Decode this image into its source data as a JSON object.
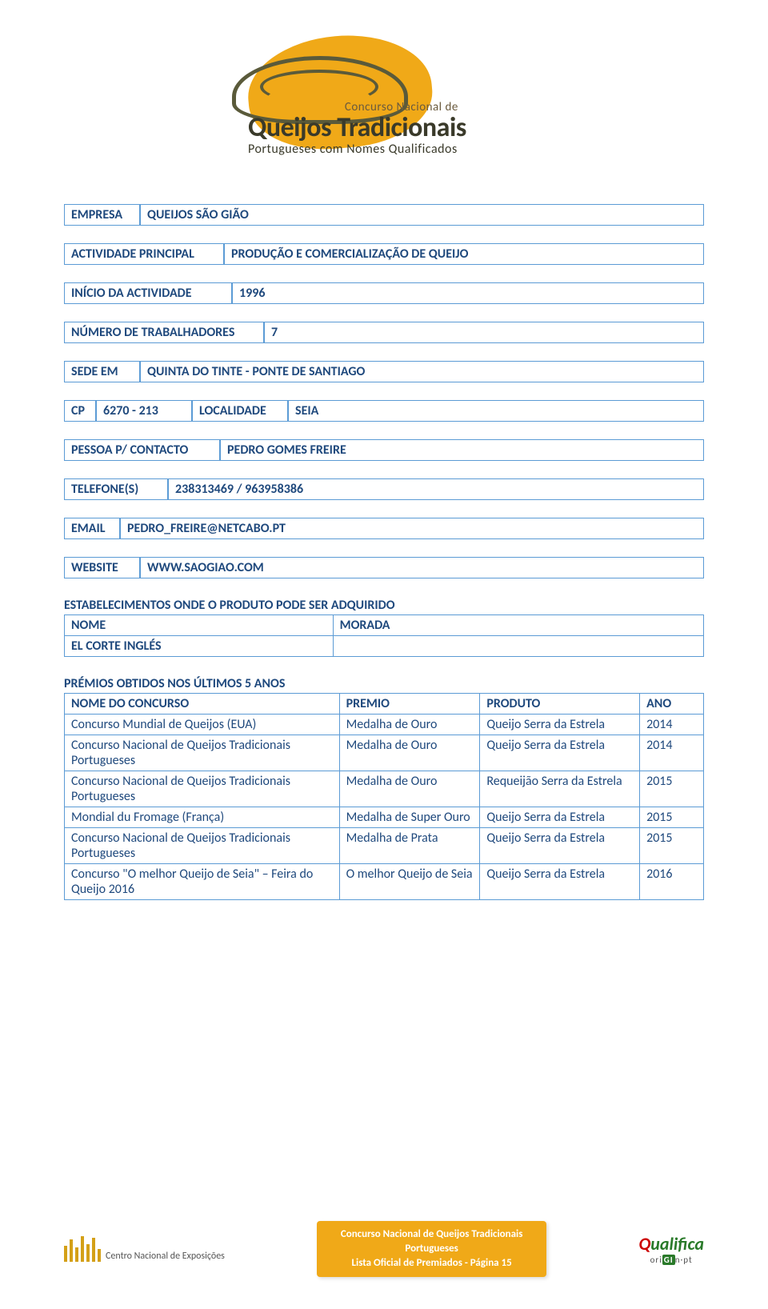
{
  "colors": {
    "text": "#1f497d",
    "border": "#5b9bd5",
    "accent_orange": "#f0a918",
    "logo_outline": "#5a5a3a",
    "background": "#ffffff",
    "qualifica_green": "#2a7a2a"
  },
  "typography": {
    "body_font": "Calibri, Arial, sans-serif",
    "body_size_pt": 12,
    "logo_title_size_pt": 26
  },
  "header": {
    "line1": "Concurso Nacional de",
    "line2": "Queijos Tradicionais",
    "line3": "Portugueses com Nomes Qualificados"
  },
  "fields": {
    "empresa_label": "EMPRESA",
    "empresa_value": "QUEIJOS SÃO GIÃO",
    "actividade_label": "ACTIVIDADE PRINCIPAL",
    "actividade_value": "PRODUÇÃO E COMERCIALIZAÇÃO DE QUEIJO",
    "inicio_label": "INÍCIO DA ACTIVIDADE",
    "inicio_value": "1996",
    "numero_label": "NÚMERO DE TRABALHADORES",
    "numero_value": "7",
    "sede_label": "SEDE EM",
    "sede_value": "QUINTA DO TINTE - PONTE DE SANTIAGO",
    "cp_label": "CP",
    "cp_value": "6270 - 213",
    "localidade_label": "LOCALIDADE",
    "localidade_value": "SEIA",
    "pessoa_label": "PESSOA P/ CONTACTO",
    "pessoa_value": "PEDRO GOMES FREIRE",
    "telefone_label": "TELEFONE(S)",
    "telefone_value": "238313469 / 963958386",
    "email_label": "EMAIL",
    "email_value": "PEDRO_FREIRE@NETCABO.PT",
    "website_label": "WEBSITE",
    "website_value": "WWW.SAOGIAO.COM"
  },
  "estabelecimentos": {
    "title": "ESTABELECIMENTOS ONDE O PRODUTO PODE SER ADQUIRIDO",
    "columns": [
      "NOME",
      "MORADA"
    ],
    "rows": [
      [
        "EL CORTE INGLÉS",
        ""
      ]
    ]
  },
  "premios": {
    "title": "PRÉMIOS OBTIDOS NOS ÚLTIMOS 5 ANOS",
    "columns": [
      "NOME DO CONCURSO",
      "PREMIO",
      "PRODUTO",
      "ANO"
    ],
    "col_widths_percent": [
      43,
      22,
      25,
      10
    ],
    "rows": [
      [
        "Concurso Mundial de Queijos (EUA)",
        "Medalha de Ouro",
        "Queijo Serra da Estrela",
        "2014"
      ],
      [
        "Concurso Nacional de Queijos Tradicionais Portugueses",
        "Medalha de Ouro",
        "Queijo Serra da Estrela",
        "2014"
      ],
      [
        "Concurso Nacional de Queijos Tradicionais Portugueses",
        "Medalha de Ouro",
        "Requeijão Serra da Estrela",
        "2015"
      ],
      [
        "Mondial du Fromage (França)",
        "Medalha de Super Ouro",
        "Queijo Serra da Estrela",
        "2015"
      ],
      [
        "Concurso Nacional de Queijos Tradicionais Portugueses",
        "Medalha de Prata",
        "Queijo Serra da Estrela",
        "2015"
      ],
      [
        "Concurso \"O melhor Queijo de Seia\" – Feira do Queijo 2016",
        "O melhor Queijo de Seia",
        "Queijo Serra da Estrela",
        "2016"
      ]
    ]
  },
  "footer": {
    "left": "Centro Nacional de Exposições",
    "center_line1": "Concurso Nacional de Queijos Tradicionais",
    "center_line2": "Portugueses",
    "center_line3": "Lista Oficial de Premiados - Página 15",
    "right_brand": "Qualifica",
    "right_sub": "oriGIn·pt"
  }
}
